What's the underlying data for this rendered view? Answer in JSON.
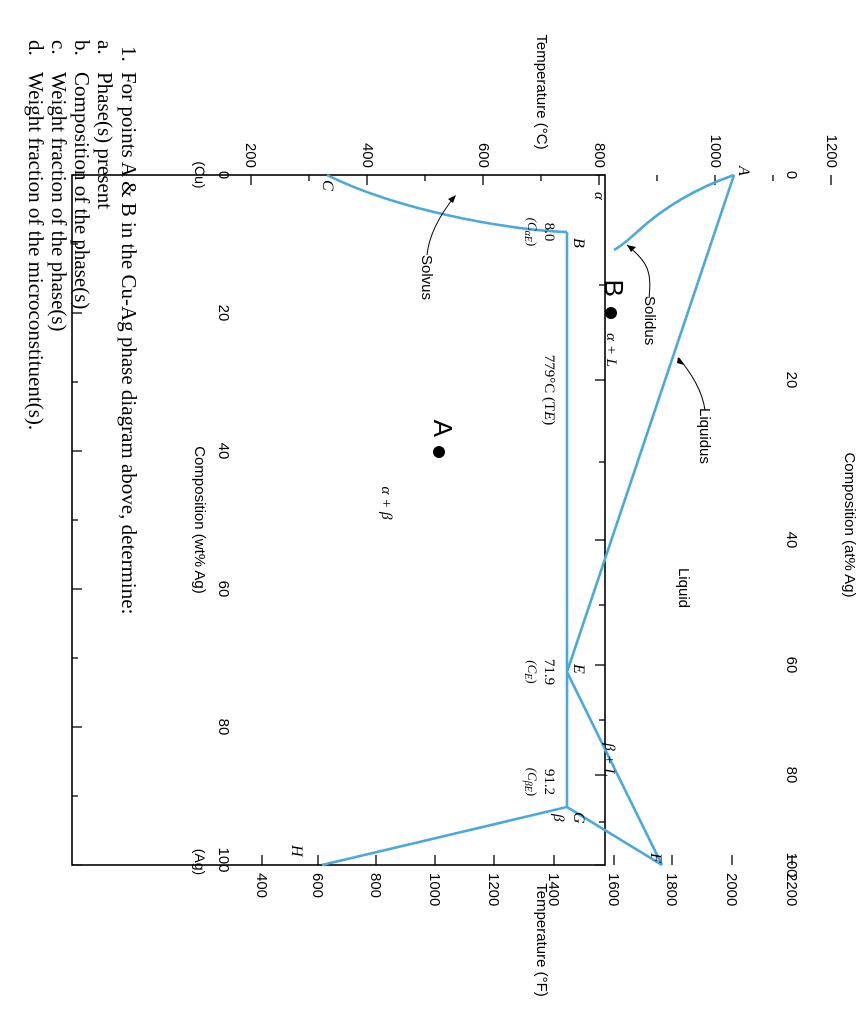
{
  "diagram": {
    "phase_labels": {
      "alpha": "α",
      "alpha_plus_liquid": "α + L",
      "alpha_plus_beta": "α + β",
      "beta_plus_liquid": "β + L",
      "beta": "β",
      "liquid": "Liquid"
    },
    "curve_labels": {
      "solidus": "Solidus",
      "liquidus": "Liquidus",
      "solvus": "Solvus"
    },
    "point_labels": {
      "A": "A",
      "B": "B",
      "C": "C",
      "E": "E",
      "F": "F",
      "G": "G",
      "H": "H"
    },
    "eutectic": {
      "temperature_label": "779°C (T",
      "temperature_sub": "E",
      "c_alpha": "8.0",
      "c_alpha_sub_label": "(C",
      "c_alpha_sub": "αE",
      "c_e": "71.9",
      "c_e_sub_label": "(C",
      "c_e_sub": "E",
      "c_beta": "91.2",
      "c_beta_sub_label": "(C",
      "c_beta_sub": "βE"
    },
    "closing_paren": ")",
    "markers": {
      "A": "A",
      "B": "B"
    },
    "axes": {
      "bottom_label": "Composition (wt% Ag)",
      "bottom_ticks": [
        "0",
        "20",
        "40",
        "60",
        "80",
        "100"
      ],
      "bottom_left_end": "(Cu)",
      "bottom_right_end": "(Ag)",
      "top_label": "Composition (at% Ag)",
      "top_ticks": [
        "0",
        "20",
        "40",
        "60",
        "80",
        "100"
      ],
      "left_label": "Temperature (°C)",
      "left_ticks": [
        "200",
        "400",
        "600",
        "800",
        "1000",
        "1200"
      ],
      "right_label": "Temperature (°F)",
      "right_ticks": [
        "400",
        "600",
        "800",
        "1000",
        "1200",
        "1400",
        "1600",
        "1800",
        "2000",
        "2200"
      ]
    },
    "colors": {
      "phase_line": "#4aa8de",
      "frame": "#000000"
    }
  },
  "question": {
    "number": "1.",
    "stem": "For points A & B in the Cu-Ag phase diagram above, determine:",
    "items": [
      {
        "letter": "a.",
        "text": "Phase(s) present"
      },
      {
        "letter": "b.",
        "text": "Composition of the phase(s)"
      },
      {
        "letter": "c.",
        "text": "Weight fraction of the phase(s)"
      },
      {
        "letter": "d.",
        "text": "Weight fraction of the microconstituent(s)."
      }
    ]
  }
}
